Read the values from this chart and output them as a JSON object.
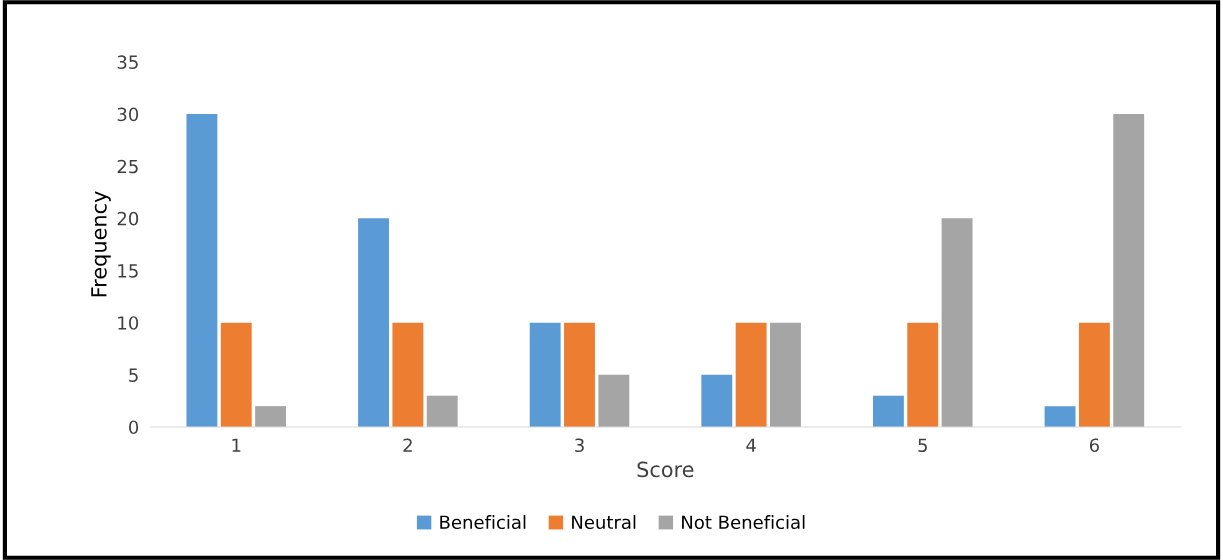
{
  "chart_data": {
    "type": "bar",
    "xlabel": "Score",
    "ylabel": "Frequency",
    "categories": [
      "1",
      "2",
      "3",
      "4",
      "5",
      "6"
    ],
    "series": [
      {
        "name": "Beneficial",
        "color": "#5b9bd5",
        "values": [
          30,
          20,
          10,
          5,
          3,
          2
        ]
      },
      {
        "name": "Neutral",
        "color": "#ed7d31",
        "values": [
          10,
          10,
          10,
          10,
          10,
          10
        ]
      },
      {
        "name": "Not Beneficial",
        "color": "#a5a5a5",
        "values": [
          2,
          3,
          5,
          10,
          20,
          30
        ]
      }
    ],
    "ylim": [
      0,
      35
    ],
    "yticks": [
      0,
      5,
      10,
      15,
      20,
      25,
      30,
      35
    ],
    "grid": false,
    "legend": "bottom"
  }
}
